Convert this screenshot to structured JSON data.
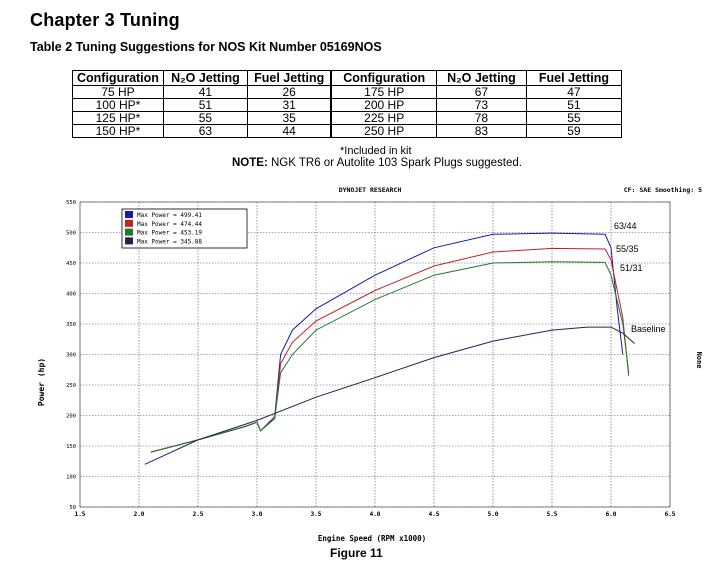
{
  "chapter_title": "Chapter 3  Tuning",
  "table_title": "Table 2  Tuning Suggestions for NOS Kit Number 05169NOS",
  "table": {
    "headers": [
      "Configuration",
      "N₂O Jetting",
      "Fuel Jetting",
      "Configuration",
      "N₂O Jetting",
      "Fuel Jetting"
    ],
    "rows": [
      [
        "75 HP",
        "41",
        "26",
        "175 HP",
        "67",
        "47"
      ],
      [
        "100 HP*",
        "51",
        "31",
        "200 HP",
        "73",
        "51"
      ],
      [
        "125 HP*",
        "55",
        "35",
        "225 HP",
        "78",
        "55"
      ],
      [
        "150 HP*",
        "63",
        "44",
        "250 HP",
        "83",
        "59"
      ]
    ]
  },
  "footnote": "*Included in kit",
  "note_label": "NOTE:",
  "note_text": " NGK TR6 or Autolite 103 Spark Plugs suggested.",
  "figure_caption": "Figure 11",
  "chart_data": {
    "type": "line",
    "title": "DYNOJET RESEARCH",
    "top_right": "CF: SAE  Smoothing: 5",
    "right_label": "None",
    "xlabel": "Engine Speed (RPM x1000)",
    "ylabel": "Power (hp)",
    "xlim": [
      1.5,
      6.5
    ],
    "ylim": [
      50,
      550
    ],
    "x_ticks": [
      "1.5",
      "2.0",
      "2.5",
      "3.0",
      "3.5",
      "4.0",
      "4.5",
      "5.0",
      "5.5",
      "6.0",
      "6.5"
    ],
    "y_ticks": [
      "50",
      "100",
      "150",
      "200",
      "250",
      "300",
      "350",
      "400",
      "450",
      "500",
      "550"
    ],
    "grid": true,
    "legend_position": "top-left",
    "series": [
      {
        "name": "63/44",
        "legend": "Max Power = 499.41",
        "color": "#1a1aa8",
        "x": [
          2.1,
          2.5,
          2.9,
          3.0,
          3.03,
          3.15,
          3.2,
          3.3,
          3.5,
          4.0,
          4.5,
          5.0,
          5.5,
          5.95,
          6.0,
          6.05,
          6.1
        ],
        "y": [
          140,
          160,
          182,
          189,
          175,
          198,
          300,
          340,
          375,
          430,
          475,
          497,
          499,
          497,
          475,
          380,
          300
        ]
      },
      {
        "name": "55/35",
        "legend": "Max Power = 474.44",
        "color": "#c0222a",
        "x": [
          2.1,
          2.5,
          2.9,
          3.0,
          3.03,
          3.15,
          3.2,
          3.3,
          3.5,
          4.0,
          4.5,
          5.0,
          5.5,
          5.95,
          6.0,
          6.1,
          6.15
        ],
        "y": [
          140,
          160,
          182,
          189,
          175,
          195,
          285,
          320,
          355,
          405,
          445,
          468,
          474,
          473,
          455,
          360,
          265
        ]
      },
      {
        "name": "51/31",
        "legend": "Max Power = 453.19",
        "color": "#1f7a2e",
        "x": [
          2.1,
          2.5,
          2.9,
          3.0,
          3.03,
          3.15,
          3.2,
          3.3,
          3.5,
          4.0,
          4.5,
          5.0,
          5.5,
          5.95,
          6.0,
          6.1,
          6.15
        ],
        "y": [
          140,
          160,
          182,
          189,
          175,
          195,
          270,
          300,
          340,
          390,
          430,
          450,
          452,
          451,
          430,
          350,
          270
        ]
      },
      {
        "name": "Baseline",
        "legend": "Max Power = 345.88",
        "color": "#222255",
        "x": [
          2.05,
          2.5,
          3.0,
          3.5,
          4.0,
          4.5,
          5.0,
          5.5,
          5.8,
          6.0,
          6.1,
          6.2
        ],
        "y": [
          120,
          160,
          192,
          230,
          262,
          295,
          322,
          340,
          345,
          345,
          335,
          318
        ]
      }
    ]
  }
}
